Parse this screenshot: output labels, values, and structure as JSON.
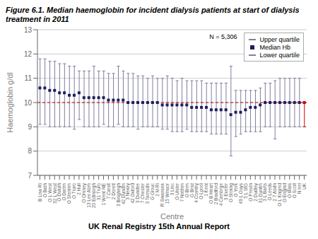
{
  "chart_data": {
    "type": "range",
    "title": "Figure 6.1. Median haemoglobin for incident dialysis patients at start of dialysis treatment in 2011",
    "xlabel": "Centre",
    "ylabel": "Haemoglobin g/dl",
    "categories": [
      "B Low Ri",
      "O Bath",
      "O L West",
      "32 L West",
      "O Duluth",
      "O Dartm",
      "O Stenhm",
      "O Truro",
      "2 Hull",
      "O Orkney",
      "13 Lee Abm",
      "20 Edinbrgh",
      "31 Truro",
      "1 Went NE",
      "7 Carslt",
      "2 Dorett",
      "3 Binghegh",
      "42 Dundm",
      "3 Newry",
      "42 Oxford",
      "3 Dundee",
      "7 Chester",
      "3 Tamside",
      "G Glouc",
      "2 M Ri",
      "R Swansea",
      "15 Winsor",
      "3 Linc",
      "O Ulster",
      "7 Notthm",
      "O Birm",
      "G Brist",
      "4 Covntry",
      "O Lpool",
      "1 Kent",
      "O B Heart",
      "2 Bradford",
      "4 Cambrge",
      "3 Exeter",
      "O Stokng",
      "O York",
      "49 L Guys",
      "5 L StG",
      "O Prestn",
      "2 Dudley",
      "31 Dunfm",
      "3 L Barts",
      "O Leeds",
      "2 7 Abdn",
      "O L Kngmd",
      "O Englnd",
      "O Wals",
      "O Scotl",
      "N Irel",
      "UK"
    ],
    "series": [
      {
        "name": "Upper quartile",
        "color": "#7f7f9f",
        "colors": [
          "#7f7f9f",
          "#7f7f9f",
          "#7f7f9f",
          "#7f7f9f",
          "#7f7f9f",
          "#7f7f9f",
          "#7f7f9f",
          "#7f7f9f",
          "#7f7f9f",
          "#7f7f9f",
          "#7f7f9f",
          "#7f7f9f",
          "#7f7f9f",
          "#7f7f9f",
          "#7f7f9f",
          "#7f7f9f",
          "#7f7f9f",
          "#7f7f9f",
          "#7f7f9f",
          "#7f7f9f",
          "#7f7f9f",
          "#7f7f9f",
          "#7f7f9f",
          "#7f7f9f",
          "#7f7f9f",
          "#7f7f9f",
          "#7f7f9f",
          "#7f7f9f",
          "#7f7f9f",
          "#7f7f9f",
          "#7f7f9f",
          "#7f7f9f",
          "#7f7f9f",
          "#7f7f9f",
          "#7f7f9f",
          "#7f7f9f",
          "#7f7f9f",
          "#7f7f9f",
          "#7f7f9f",
          "#7f7f9f",
          "#7f7f9f",
          "#7f7f9f",
          "#7f7f9f",
          "#7f7f9f",
          "#7f7f9f",
          "#7f7f9f",
          "#7f7f9f",
          "#7f7f9f",
          "#7f7f9f",
          "#7f7f9f",
          "#7f7f9f",
          "#7f7f9f",
          "#7f7f9f",
          "#7f7f9f",
          "#cc0000"
        ],
        "values": [
          11.8,
          11.8,
          11.7,
          11.7,
          11.6,
          11.6,
          11.5,
          11.5,
          11.3,
          11.3,
          11.3,
          11.5,
          11.3,
          11.3,
          11.2,
          11.2,
          11.5,
          11.3,
          11.2,
          11.2,
          11.1,
          11.1,
          11.0,
          11.1,
          11.0,
          11.0,
          11.1,
          11.0,
          10.9,
          11.0,
          10.9,
          10.9,
          10.9,
          10.9,
          10.8,
          10.8,
          10.8,
          10.8,
          10.8,
          11.5,
          10.5,
          10.5,
          10.5,
          10.5,
          10.5,
          10.6,
          10.8,
          10.8,
          10.9,
          11.0,
          11.0,
          11.0,
          11.0,
          11.0,
          10.0
        ]
      },
      {
        "name": "Median Hb",
        "color": "#1f1f5f",
        "marker": "square",
        "colors": [
          "#1f1f5f",
          "#1f1f5f",
          "#1f1f5f",
          "#1f1f5f",
          "#1f1f5f",
          "#1f1f5f",
          "#1f1f5f",
          "#1f1f5f",
          "#1f1f5f",
          "#1f1f5f",
          "#1f1f5f",
          "#1f1f5f",
          "#1f1f5f",
          "#1f1f5f",
          "#1f1f5f",
          "#1f1f5f",
          "#1f1f5f",
          "#1f1f5f",
          "#1f1f5f",
          "#1f1f5f",
          "#1f1f5f",
          "#1f1f5f",
          "#1f1f5f",
          "#1f1f5f",
          "#1f1f5f",
          "#1f1f5f",
          "#1f1f5f",
          "#1f1f5f",
          "#1f1f5f",
          "#1f1f5f",
          "#1f1f5f",
          "#1f1f5f",
          "#1f1f5f",
          "#1f1f5f",
          "#1f1f5f",
          "#1f1f5f",
          "#1f1f5f",
          "#1f1f5f",
          "#1f1f5f",
          "#1f1f5f",
          "#1f1f5f",
          "#1f1f5f",
          "#1f1f5f",
          "#1f1f5f",
          "#1f1f5f",
          "#1f1f5f",
          "#1f1f5f",
          "#1f1f5f",
          "#1f1f5f",
          "#1f1f5f",
          "#1f1f5f",
          "#1f1f5f",
          "#1f1f5f",
          "#1f1f5f",
          "#cc0000"
        ],
        "values": [
          10.6,
          10.6,
          10.5,
          10.5,
          10.4,
          10.4,
          10.3,
          10.3,
          10.4,
          10.2,
          10.2,
          10.2,
          10.2,
          10.2,
          10.1,
          10.1,
          10.1,
          10.1,
          10.0,
          10.0,
          10.0,
          10.0,
          10.0,
          10.0,
          10.0,
          9.9,
          9.9,
          9.9,
          9.9,
          9.9,
          9.9,
          9.8,
          9.8,
          9.8,
          9.8,
          9.7,
          9.7,
          9.7,
          9.7,
          9.5,
          9.6,
          9.6,
          9.7,
          9.8,
          9.8,
          9.9,
          10.0,
          10.0,
          10.0,
          10.0,
          10.0,
          10.0,
          10.0,
          10.0,
          10.0
        ]
      },
      {
        "name": "Lower quartile",
        "color": "#7f7f9f",
        "colors": [
          "#7f7f9f",
          "#7f7f9f",
          "#7f7f9f",
          "#7f7f9f",
          "#7f7f9f",
          "#7f7f9f",
          "#7f7f9f",
          "#7f7f9f",
          "#7f7f9f",
          "#7f7f9f",
          "#7f7f9f",
          "#7f7f9f",
          "#7f7f9f",
          "#7f7f9f",
          "#7f7f9f",
          "#7f7f9f",
          "#7f7f9f",
          "#7f7f9f",
          "#7f7f9f",
          "#7f7f9f",
          "#7f7f9f",
          "#7f7f9f",
          "#7f7f9f",
          "#7f7f9f",
          "#7f7f9f",
          "#7f7f9f",
          "#7f7f9f",
          "#7f7f9f",
          "#7f7f9f",
          "#7f7f9f",
          "#7f7f9f",
          "#7f7f9f",
          "#7f7f9f",
          "#7f7f9f",
          "#7f7f9f",
          "#7f7f9f",
          "#7f7f9f",
          "#7f7f9f",
          "#7f7f9f",
          "#7f7f9f",
          "#7f7f9f",
          "#7f7f9f",
          "#7f7f9f",
          "#7f7f9f",
          "#7f7f9f",
          "#7f7f9f",
          "#7f7f9f",
          "#7f7f9f",
          "#7f7f9f",
          "#7f7f9f",
          "#7f7f9f",
          "#7f7f9f",
          "#7f7f9f",
          "#7f7f9f",
          "#cc0000"
        ],
        "values": [
          9.1,
          9.1,
          9.0,
          9.0,
          9.0,
          9.0,
          9.0,
          8.9,
          9.3,
          9.0,
          9.0,
          9.0,
          9.0,
          9.1,
          9.0,
          9.0,
          9.1,
          9.0,
          9.0,
          9.0,
          8.9,
          9.0,
          9.0,
          9.0,
          9.0,
          8.9,
          8.9,
          8.8,
          8.8,
          8.8,
          8.9,
          8.8,
          8.8,
          8.8,
          8.8,
          8.7,
          8.7,
          8.7,
          8.7,
          7.8,
          8.6,
          8.7,
          8.8,
          8.8,
          8.8,
          8.8,
          9.0,
          9.0,
          8.5,
          9.0,
          9.0,
          9.0,
          9.0,
          9.0,
          9.0
        ]
      }
    ],
    "reference_line": {
      "value": 10.0,
      "color": "#cc0000",
      "line_style": "dashed"
    },
    "annotations": [
      "N = 5,306"
    ],
    "footer": "UK Renal Registry 15th Annual Report",
    "ylim": [
      7,
      13
    ],
    "yticks": [
      7,
      8,
      9,
      10,
      11,
      12,
      13
    ],
    "grid": true,
    "legend": "upper right"
  }
}
